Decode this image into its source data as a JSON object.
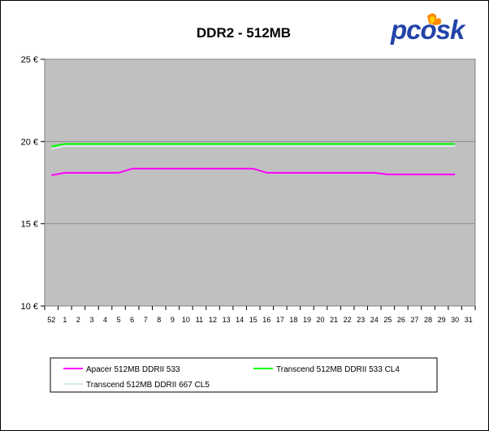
{
  "logo": {
    "text": "pcosk"
  },
  "colors": {
    "plot_bg": "#c0c0c0",
    "grid": "#8c8c8c",
    "apacer": "#ff00ff",
    "transcend_cl4": "#00ff00",
    "transcend_cl5": "#d6ece6",
    "logo_blue": "#2343a8",
    "logo_flame": "#ff8a00"
  },
  "chart_data": {
    "type": "line",
    "title": "DDR2 - 512MB",
    "xlabel": "",
    "ylabel": "",
    "categories": [
      "52",
      "1",
      "2",
      "3",
      "4",
      "5",
      "6",
      "7",
      "8",
      "9",
      "10",
      "11",
      "12",
      "13",
      "14",
      "15",
      "16",
      "17",
      "18",
      "19",
      "20",
      "21",
      "22",
      "23",
      "24",
      "25",
      "26",
      "27",
      "28",
      "29",
      "30",
      "31"
    ],
    "ylim": [
      10,
      25
    ],
    "yticks": [
      10,
      15,
      20,
      25
    ],
    "ytick_labels": [
      "10 €",
      "15 €",
      "20 €",
      "25 €"
    ],
    "grid": true,
    "legend_position": "bottom",
    "series": [
      {
        "name": "Apacer 512MB DDRII 533",
        "color": "#ff00ff",
        "values": [
          17.95,
          18.1,
          18.1,
          18.1,
          18.1,
          18.1,
          18.35,
          18.35,
          18.35,
          18.35,
          18.35,
          18.35,
          18.35,
          18.35,
          18.35,
          18.35,
          18.1,
          18.1,
          18.1,
          18.1,
          18.1,
          18.1,
          18.1,
          18.1,
          18.1,
          18.0,
          18.0,
          18.0,
          18.0,
          18.0,
          18.0,
          null
        ]
      },
      {
        "name": "Transcend 512MB DDRII 533 CL4",
        "color": "#00ff00",
        "values": [
          19.7,
          19.85,
          19.85,
          19.85,
          19.85,
          19.85,
          19.85,
          19.85,
          19.85,
          19.85,
          19.85,
          19.85,
          19.85,
          19.85,
          19.85,
          19.85,
          19.85,
          19.85,
          19.85,
          19.85,
          19.85,
          19.85,
          19.85,
          19.85,
          19.85,
          19.85,
          19.85,
          19.85,
          19.85,
          19.85,
          19.85,
          null
        ]
      },
      {
        "name": "Transcend 512MB DDRII 667 CL5",
        "color": "#d6ece6",
        "values": [
          19.55,
          19.72,
          19.72,
          19.72,
          19.72,
          19.72,
          19.72,
          19.72,
          19.72,
          19.72,
          19.72,
          19.72,
          19.72,
          19.72,
          19.72,
          19.72,
          19.72,
          19.72,
          19.72,
          19.72,
          19.72,
          19.72,
          19.72,
          19.72,
          19.72,
          19.72,
          19.72,
          19.72,
          19.72,
          19.72,
          19.72,
          null
        ]
      }
    ]
  }
}
